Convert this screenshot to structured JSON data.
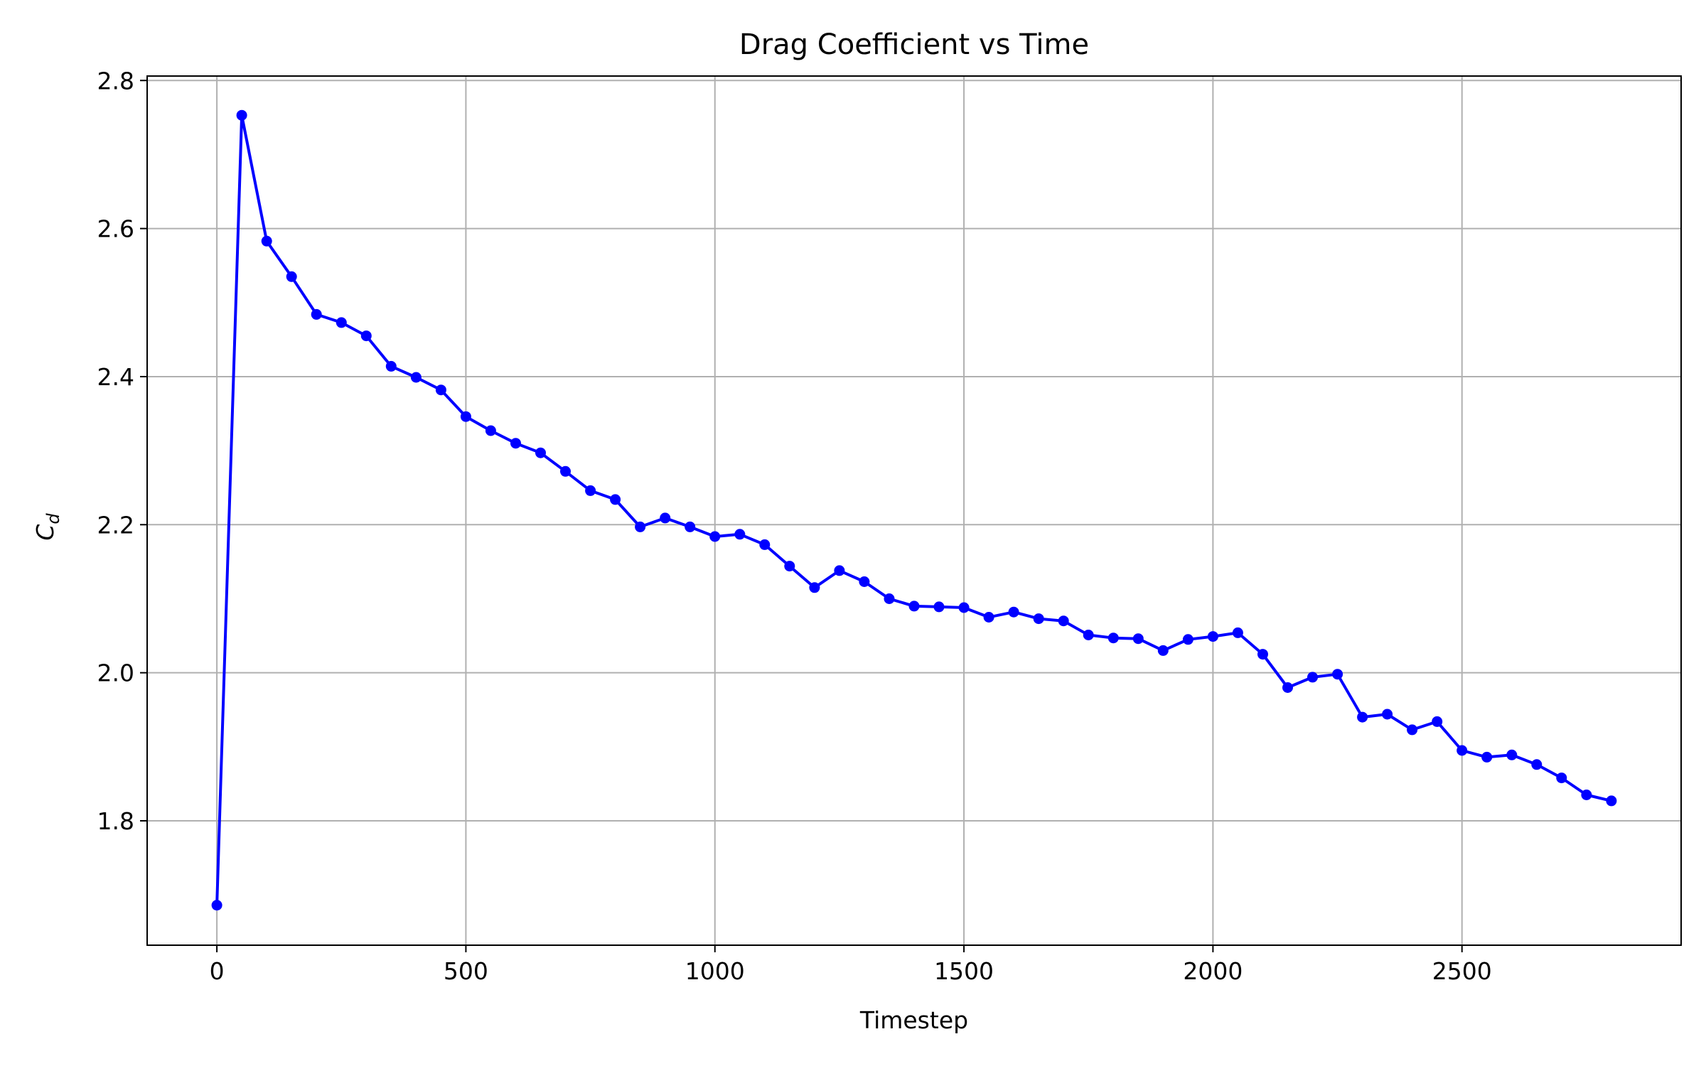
{
  "chart_data": {
    "type": "line",
    "title": "Drag Coefficient vs Time",
    "xlabel": "Timestep",
    "ylabel": "C",
    "ylabel_subscript": "d",
    "xlim": [
      -140,
      2940
    ],
    "ylim": [
      1.632,
      2.806
    ],
    "x_ticks": [
      0,
      500,
      1000,
      1500,
      2000,
      2500
    ],
    "y_ticks": [
      1.8,
      2.0,
      2.2,
      2.4,
      2.6,
      2.8
    ],
    "x_tick_labels": [
      "0",
      "500",
      "1000",
      "1500",
      "2000",
      "2500"
    ],
    "y_tick_labels": [
      "1.8",
      "2.0",
      "2.2",
      "2.4",
      "2.6",
      "2.8"
    ],
    "grid": true,
    "line_color": "#0000ff",
    "series": [
      {
        "marker": "circle",
        "x": [
          0,
          50,
          100,
          150,
          200,
          250,
          300,
          350,
          400,
          450,
          500,
          550,
          600,
          650,
          700,
          750,
          800,
          850,
          900,
          950,
          1000,
          1050,
          1100,
          1150,
          1200,
          1250,
          1300,
          1350,
          1400,
          1450,
          1500,
          1550,
          1600,
          1650,
          1700,
          1750,
          1800,
          1850,
          1900,
          1950,
          2000,
          2050,
          2100,
          2150,
          2200,
          2250,
          2300,
          2350,
          2400,
          2450,
          2500,
          2550,
          2600,
          2650,
          2700,
          2750,
          2800
        ],
        "y": [
          1.686,
          2.753,
          2.583,
          2.535,
          2.484,
          2.473,
          2.455,
          2.414,
          2.399,
          2.382,
          2.346,
          2.327,
          2.31,
          2.297,
          2.272,
          2.246,
          2.234,
          2.197,
          2.209,
          2.197,
          2.184,
          2.187,
          2.173,
          2.144,
          2.115,
          2.138,
          2.123,
          2.1,
          2.09,
          2.089,
          2.088,
          2.075,
          2.082,
          2.073,
          2.07,
          2.051,
          2.047,
          2.046,
          2.03,
          2.045,
          2.049,
          2.054,
          2.025,
          1.98,
          1.994,
          1.998,
          1.94,
          1.944,
          1.923,
          1.934,
          1.895,
          1.886,
          1.889,
          1.876,
          1.858,
          1.835,
          1.827
        ]
      }
    ]
  }
}
